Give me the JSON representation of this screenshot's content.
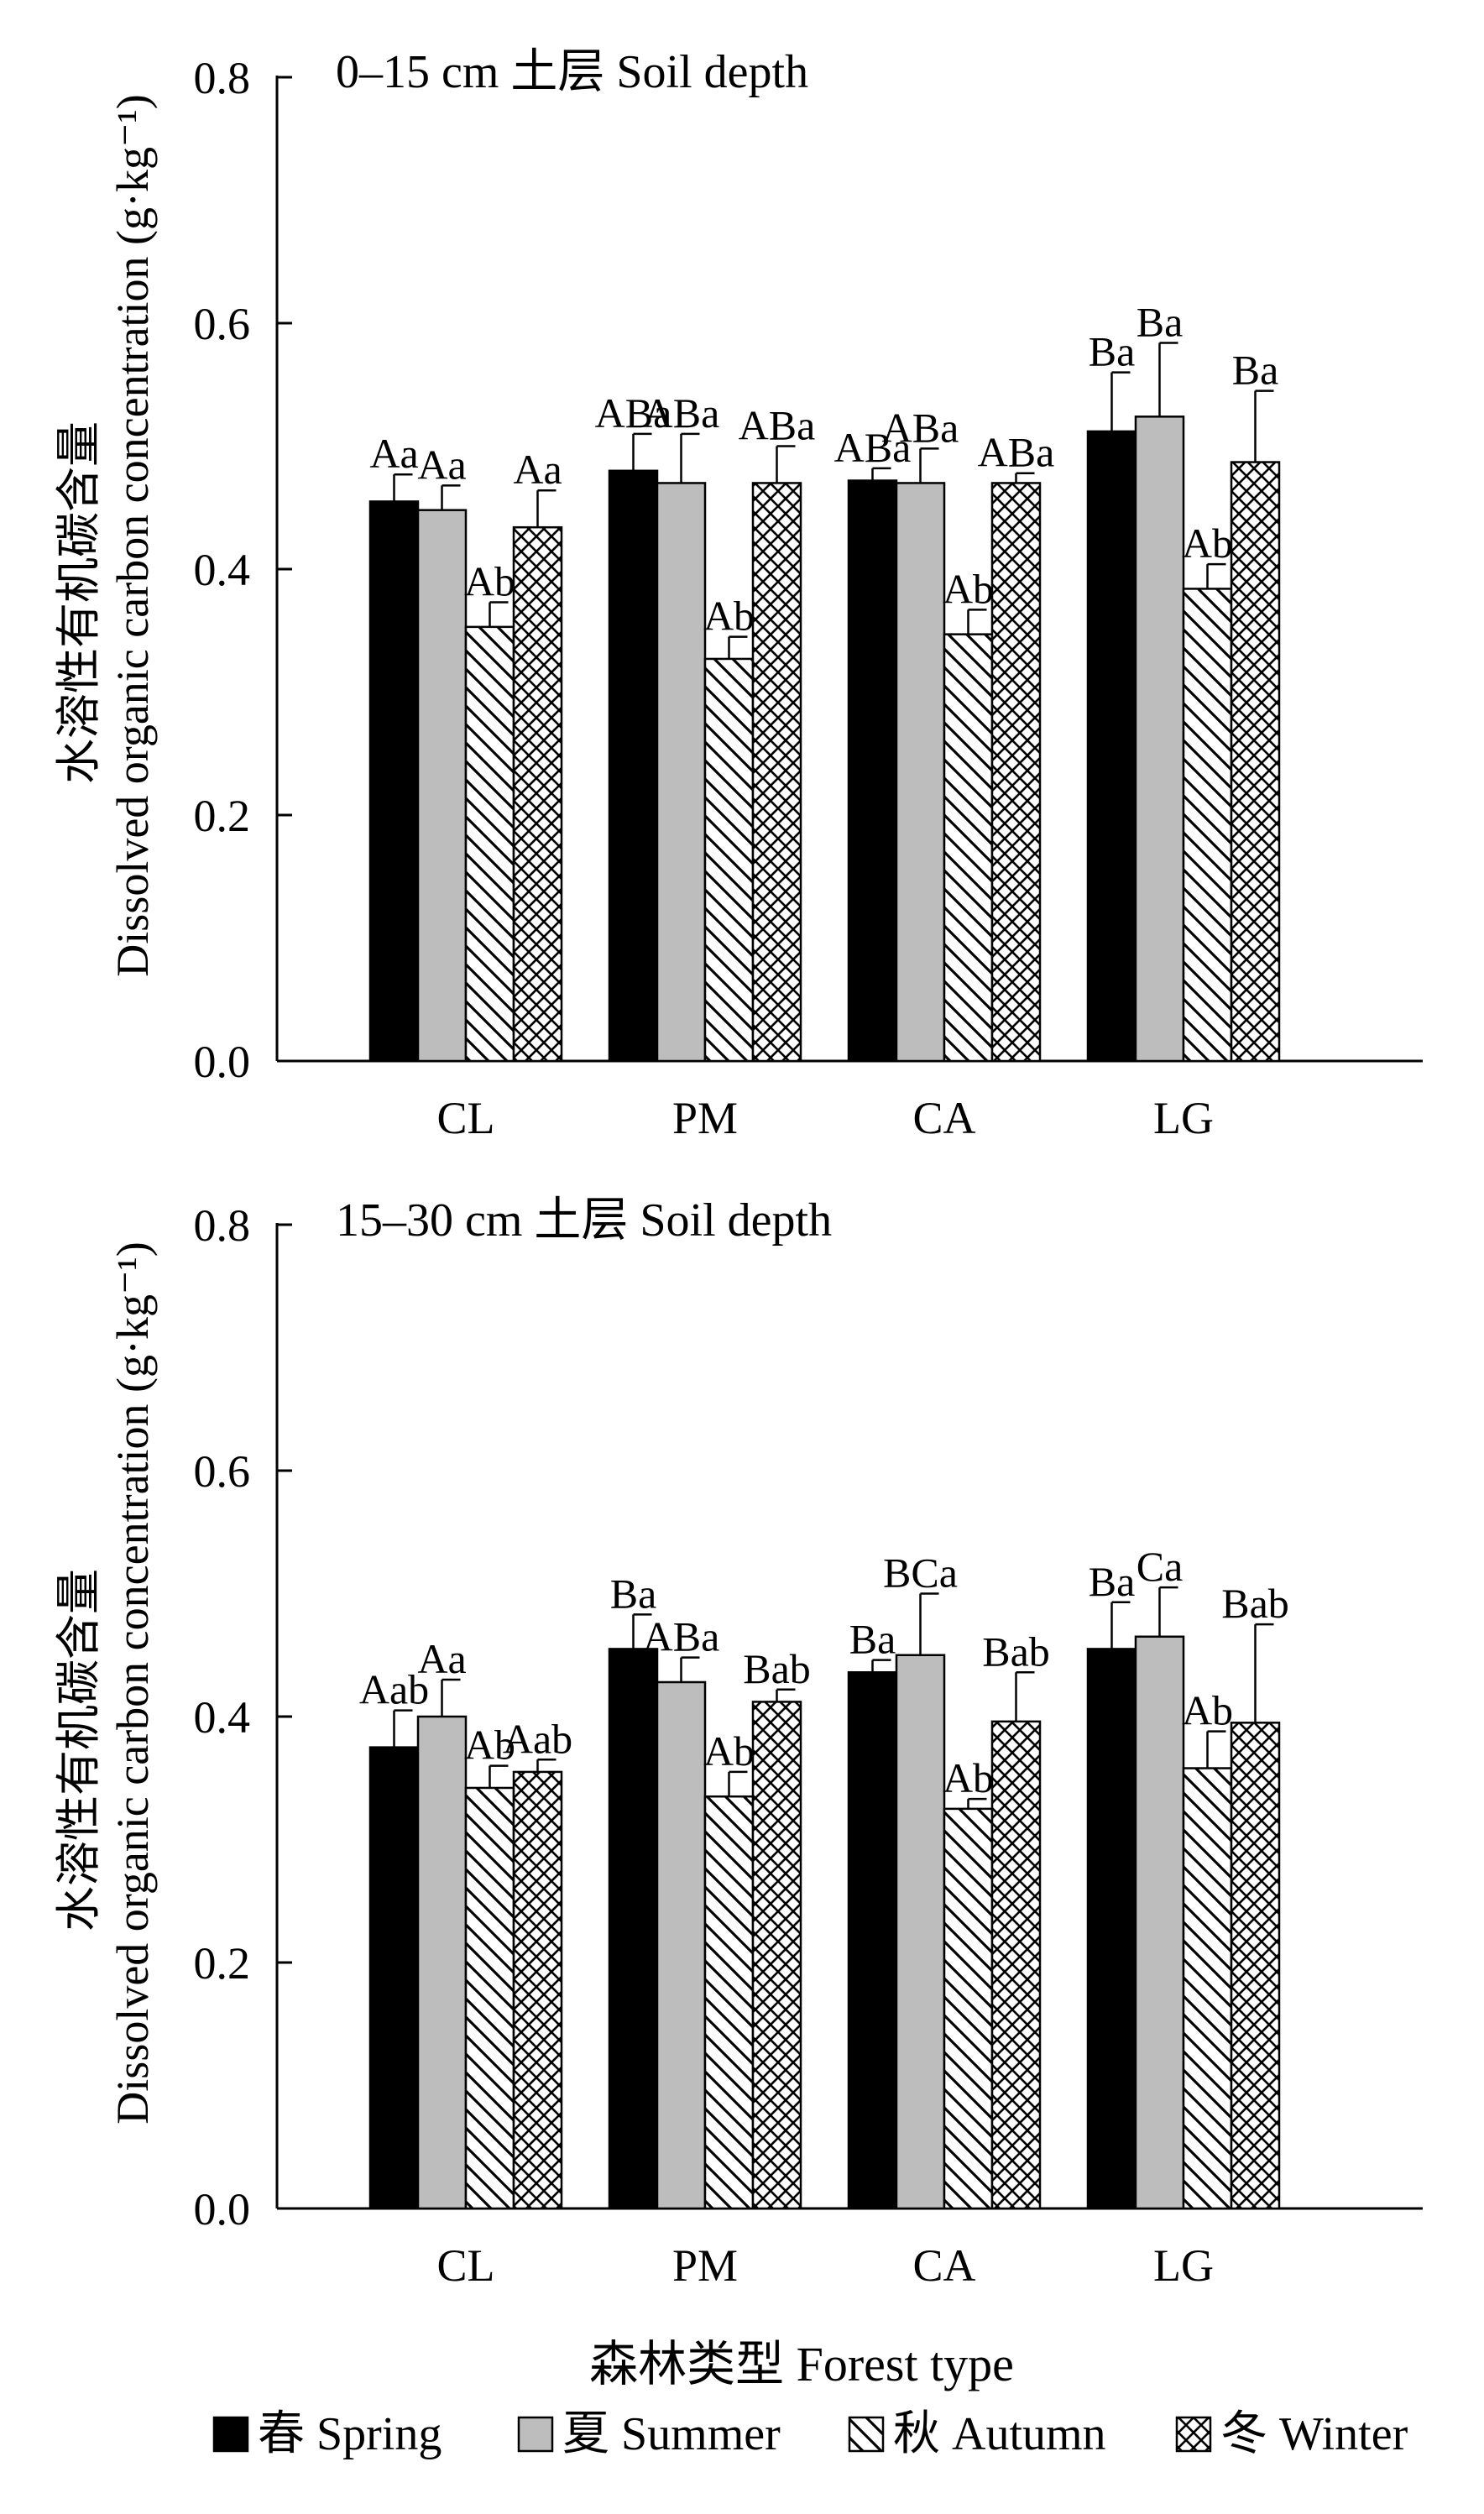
{
  "xlabel": "森林类型 Forest type",
  "legend": [
    {
      "name": "春 Spring",
      "pattern": "solid-black"
    },
    {
      "name": "夏 Summer",
      "pattern": "solid-gray"
    },
    {
      "name": "秋 Autumn",
      "pattern": "diagonal-hatch"
    },
    {
      "name": "冬 Winter",
      "pattern": "crosshatch"
    }
  ],
  "colors": {
    "spring": "#000000",
    "summer": "#bdbdbd",
    "hatch": "#000000",
    "axis": "#000000"
  },
  "chart_data": [
    {
      "type": "bar",
      "title": "0–15 cm 土层 Soil depth",
      "ylabel_line1": "水溶性有机碳含量",
      "ylabel_line2": "Dissolved organic carbon concentration (g·kg⁻¹)",
      "ylim": [
        0,
        0.8
      ],
      "yticks": [
        "0.0",
        "0.2",
        "0.4",
        "0.6",
        "0.8"
      ],
      "categories": [
        "CL",
        "PM",
        "CA",
        "LG"
      ],
      "series": [
        {
          "name": "春 Spring",
          "values": [
            0.455,
            0.48,
            0.472,
            0.512
          ],
          "errors": [
            0.022,
            0.03,
            0.01,
            0.048
          ],
          "labels": [
            "Aa",
            "ABa",
            "ABa",
            "Ba"
          ]
        },
        {
          "name": "夏 Summer",
          "values": [
            0.448,
            0.47,
            0.47,
            0.524
          ],
          "errors": [
            0.02,
            0.04,
            0.028,
            0.06
          ],
          "labels": [
            "Aa",
            "ABa",
            "ABa",
            "Ba"
          ]
        },
        {
          "name": "秋 Autumn",
          "values": [
            0.353,
            0.327,
            0.347,
            0.384
          ],
          "errors": [
            0.02,
            0.018,
            0.02,
            0.02
          ],
          "labels": [
            "Ab",
            "Ab",
            "Ab",
            "Ab"
          ]
        },
        {
          "name": "冬 Winter",
          "values": [
            0.434,
            0.47,
            0.47,
            0.487
          ],
          "errors": [
            0.03,
            0.03,
            0.008,
            0.058
          ],
          "labels": [
            "Aa",
            "ABa",
            "ABa",
            "Ba"
          ]
        }
      ]
    },
    {
      "type": "bar",
      "title": "15–30 cm 土层 Soil depth",
      "ylabel_line1": "水溶性有机碳含量",
      "ylabel_line2": "Dissolved organic carbon concentration (g·kg⁻¹)",
      "ylim": [
        0,
        0.8
      ],
      "yticks": [
        "0.0",
        "0.2",
        "0.4",
        "0.6",
        "0.8"
      ],
      "categories": [
        "CL",
        "PM",
        "CA",
        "LG"
      ],
      "series": [
        {
          "name": "春 Spring",
          "values": [
            0.375,
            0.455,
            0.436,
            0.455
          ],
          "errors": [
            0.03,
            0.028,
            0.01,
            0.038
          ],
          "labels": [
            "Aab",
            "Ba",
            "Ba",
            "Ba"
          ]
        },
        {
          "name": "夏 Summer",
          "values": [
            0.4,
            0.428,
            0.45,
            0.465
          ],
          "errors": [
            0.03,
            0.02,
            0.05,
            0.04
          ],
          "labels": [
            "Aa",
            "ABa",
            "BCa",
            "Ca"
          ]
        },
        {
          "name": "秋 Autumn",
          "values": [
            0.342,
            0.335,
            0.325,
            0.358
          ],
          "errors": [
            0.018,
            0.02,
            0.008,
            0.03
          ],
          "labels": [
            "Ab",
            "Ab",
            "Ab",
            "Ab"
          ]
        },
        {
          "name": "冬 Winter",
          "values": [
            0.355,
            0.412,
            0.396,
            0.395
          ],
          "errors": [
            0.01,
            0.01,
            0.04,
            0.08
          ],
          "labels": [
            "Aab",
            "Bab",
            "Bab",
            "Bab"
          ]
        }
      ]
    }
  ]
}
